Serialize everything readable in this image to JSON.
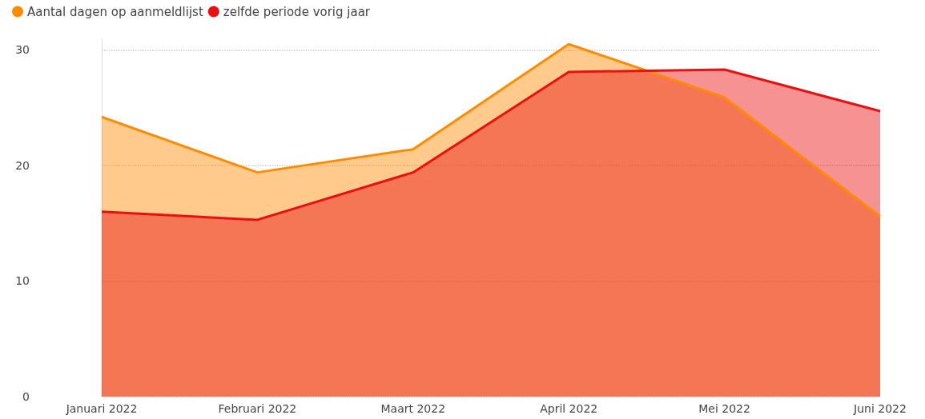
{
  "chart_data": {
    "type": "area",
    "categories": [
      "Januari 2022",
      "Februari 2022",
      "Maart 2022",
      "April 2022",
      "Mei 2022",
      "Juni 2022"
    ],
    "series": [
      {
        "name": "Aantal dagen op aanmeldlijst",
        "color": "#ff8c00",
        "values": [
          24.2,
          19.4,
          21.4,
          30.5,
          25.9,
          15.6
        ]
      },
      {
        "name": "zelfde periode vorig jaar",
        "color": "#e81010",
        "values": [
          16.0,
          15.3,
          19.4,
          28.1,
          28.3,
          24.7
        ]
      }
    ],
    "ylim": [
      0,
      31
    ],
    "yticks": [
      0,
      10,
      20,
      30
    ],
    "grid": "y",
    "legend": "top left",
    "marker": "none",
    "line_style": "solid"
  }
}
